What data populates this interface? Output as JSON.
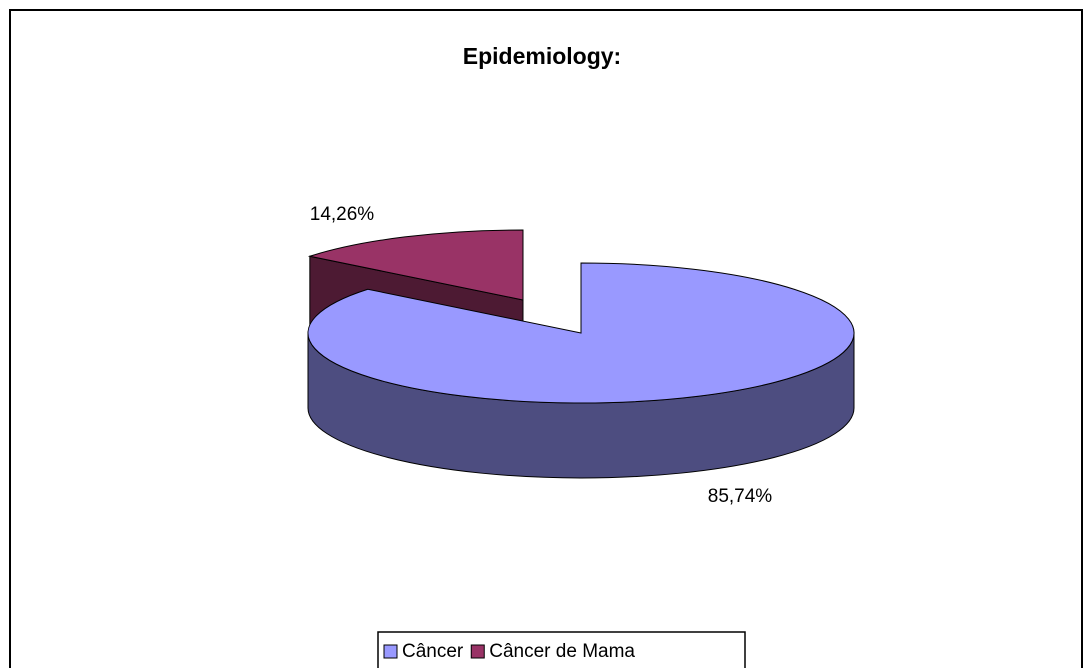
{
  "chart_data": {
    "type": "pie",
    "title": "Epidemiology:",
    "categories": [
      "Câncer",
      "Câncer de Mama"
    ],
    "values": [
      85.74,
      14.26
    ],
    "value_labels": [
      "85,74%",
      "14,26%"
    ],
    "colors": [
      "#9999ff",
      "#993366"
    ],
    "legend": "bottom"
  }
}
